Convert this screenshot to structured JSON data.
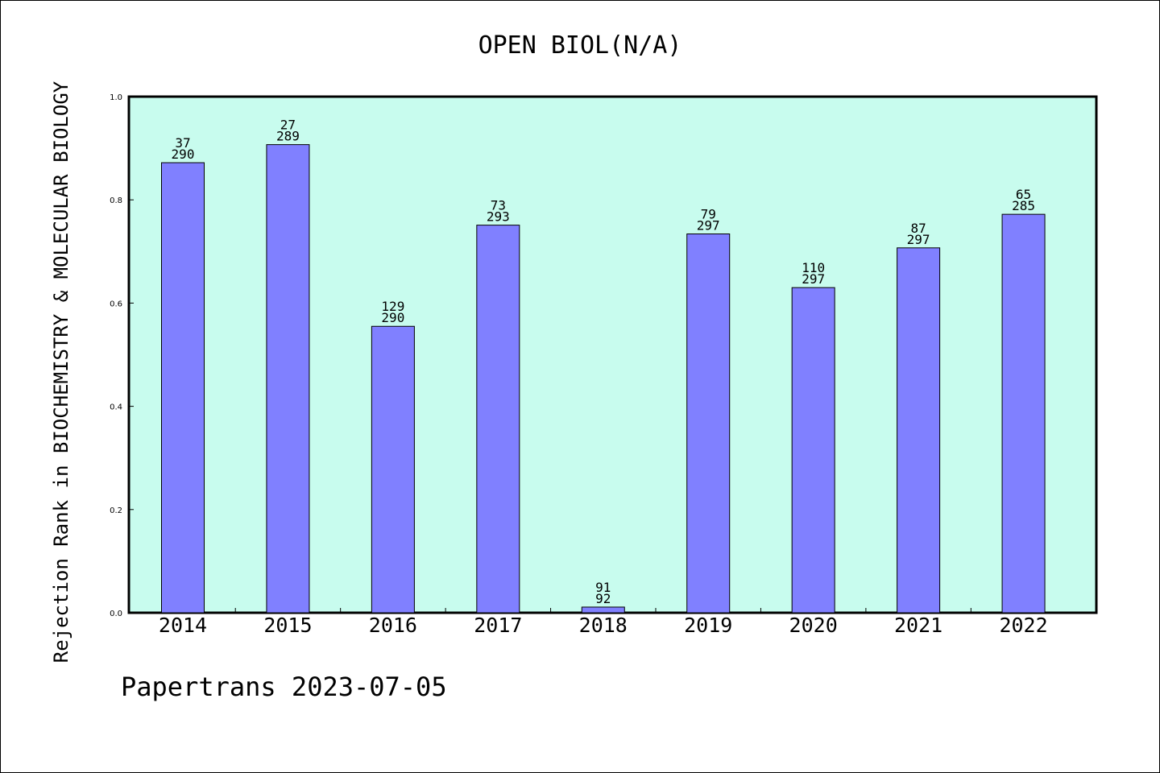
{
  "chart_data": {
    "type": "bar",
    "title": "OPEN BIOL(N/A)",
    "ylabel": "Rejection Rank in BIOCHEMISTRY & MOLECULAR BIOLOGY",
    "xlabel": "",
    "categories": [
      "2014",
      "2015",
      "2016",
      "2017",
      "2018",
      "2019",
      "2020",
      "2021",
      "2022"
    ],
    "values": [
      0.872,
      0.907,
      0.555,
      0.751,
      0.011,
      0.734,
      0.63,
      0.707,
      0.772
    ],
    "labels": [
      {
        "rank": "37",
        "total": "290"
      },
      {
        "rank": "27",
        "total": "289"
      },
      {
        "rank": "129",
        "total": "290"
      },
      {
        "rank": "73",
        "total": "293"
      },
      {
        "rank": "91",
        "total": "92"
      },
      {
        "rank": "79",
        "total": "297"
      },
      {
        "rank": "110",
        "total": "297"
      },
      {
        "rank": "87",
        "total": "297"
      },
      {
        "rank": "65",
        "total": "285"
      }
    ],
    "ylim": [
      0,
      1.0
    ],
    "yticks": [
      "0.0",
      "0.2",
      "0.4",
      "0.6",
      "0.8",
      "1.0"
    ],
    "grid": false,
    "colors": {
      "plot_background": "#c8fcee",
      "bar": "#8080ff",
      "edge": "#000000"
    }
  },
  "footer": "Papertrans 2023-07-05"
}
